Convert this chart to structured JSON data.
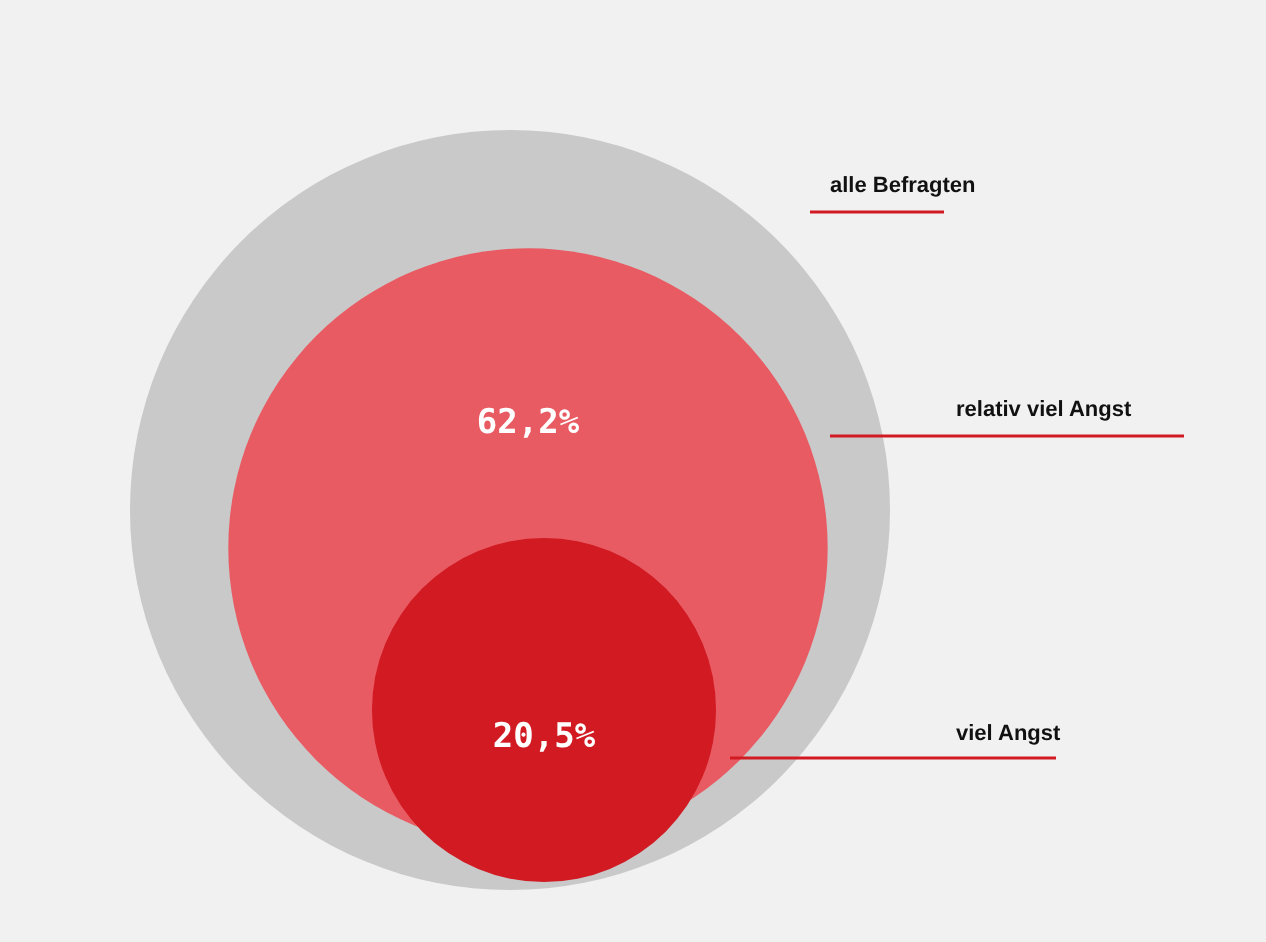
{
  "chart_data": {
    "type": "other",
    "categories": [
      "alle Befragten",
      "relativ viel Angst",
      "viel Angst"
    ],
    "values": [
      null,
      62.2,
      20.5
    ],
    "value_labels": [
      null,
      "62,2%",
      "20,5%"
    ],
    "colors": [
      "#c9c9c9",
      "#e95b63",
      "#d11a22"
    ]
  }
}
